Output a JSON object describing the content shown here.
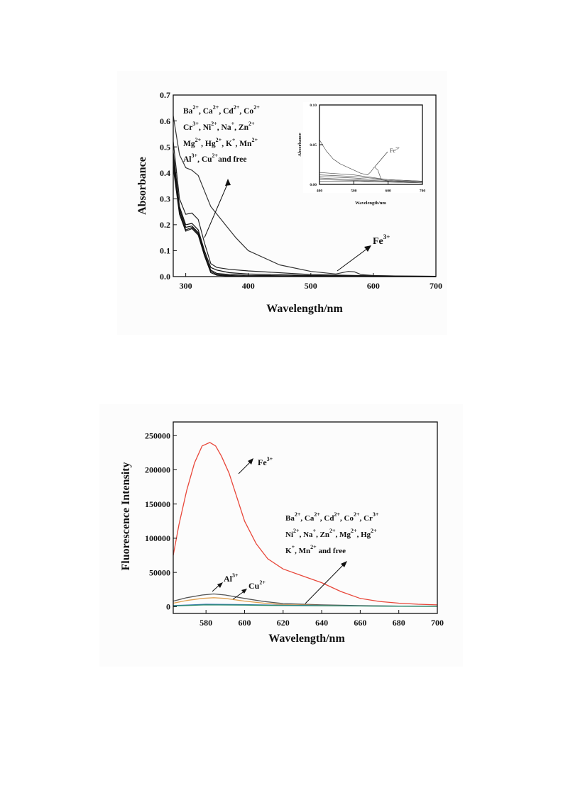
{
  "chart_data": [
    {
      "type": "line",
      "title": "",
      "xlabel": "Wavelength/nm",
      "ylabel": "Absorbance",
      "xlim": [
        280,
        700
      ],
      "ylim": [
        0,
        0.7
      ],
      "xticks": [
        "300",
        "400",
        "500",
        "600",
        "700"
      ],
      "yticks": [
        "0.0",
        "0.1",
        "0.2",
        "0.3",
        "0.4",
        "0.5",
        "0.6",
        "0.7"
      ],
      "series": [
        {
          "name": "Fe3+",
          "color": "#333333",
          "x": [
            280,
            290,
            300,
            310,
            320,
            330,
            340,
            360,
            380,
            400,
            450,
            500,
            540,
            560,
            570,
            580,
            600,
            650,
            700
          ],
          "y": [
            0.62,
            0.47,
            0.42,
            0.41,
            0.39,
            0.33,
            0.27,
            0.21,
            0.15,
            0.1,
            0.045,
            0.02,
            0.01,
            0.02,
            0.018,
            0.008,
            0.004,
            0.002,
            0.001
          ]
        },
        {
          "name": "",
          "color": "#222222",
          "x": [
            280,
            290,
            300,
            310,
            320,
            330,
            340,
            350,
            370,
            400,
            500,
            600,
            700
          ],
          "y": [
            0.52,
            0.3,
            0.24,
            0.245,
            0.22,
            0.13,
            0.05,
            0.035,
            0.028,
            0.022,
            0.008,
            0.003,
            0.001
          ]
        },
        {
          "name": "",
          "color": "#111111",
          "x": [
            280,
            290,
            300,
            310,
            320,
            330,
            340,
            350,
            370,
            400,
            500,
            600,
            700
          ],
          "y": [
            0.48,
            0.27,
            0.2,
            0.205,
            0.18,
            0.1,
            0.035,
            0.025,
            0.015,
            0.01,
            0.004,
            0.002,
            0.0
          ]
        },
        {
          "name": "",
          "color": "#111111",
          "x": [
            280,
            290,
            300,
            310,
            320,
            330,
            340,
            350,
            370,
            400,
            500,
            600,
            700
          ],
          "y": [
            0.46,
            0.26,
            0.19,
            0.195,
            0.17,
            0.09,
            0.025,
            0.012,
            0.008,
            0.005,
            0.002,
            0.001,
            0.0
          ]
        },
        {
          "name": "",
          "color": "#111111",
          "x": [
            280,
            290,
            300,
            310,
            320,
            330,
            340,
            350,
            370,
            400,
            500,
            600,
            700
          ],
          "y": [
            0.44,
            0.25,
            0.18,
            0.19,
            0.165,
            0.085,
            0.02,
            0.008,
            0.004,
            0.002,
            0.001,
            0.0,
            0.0
          ]
        },
        {
          "name": "",
          "color": "#111111",
          "x": [
            280,
            290,
            300,
            310,
            320,
            330,
            340,
            350,
            370,
            400,
            500,
            600,
            700
          ],
          "y": [
            0.42,
            0.24,
            0.175,
            0.185,
            0.16,
            0.08,
            0.015,
            0.005,
            0.002,
            0.001,
            0.0,
            0.0,
            0.0
          ]
        }
      ],
      "annotations": [
        {
          "text": "Ba2+, Ca2+, Cd2+, Co2+, Cr3+, Ni2+, Na+, Zn2+, Mg2+, Hg2+, K+, Mn2+, Al3+, Cu2+and free"
        },
        {
          "text": "Fe3+"
        }
      ],
      "inset": {
        "xlabel": "Wavelength/nm",
        "ylabel": "Absorbance",
        "xlim": [
          400,
          700
        ],
        "ylim": [
          0,
          0.1
        ],
        "xticks": [
          "400",
          "500",
          "600",
          "700"
        ],
        "yticks": [
          "0.00",
          "0.05",
          "0.10"
        ],
        "label": "Fe3+",
        "series": [
          {
            "name": "Fe3+",
            "x": [
              400,
              420,
              440,
              460,
              480,
              500,
              520,
              540,
              550,
              560,
              570,
              580,
              600,
              650,
              700
            ],
            "y": [
              0.056,
              0.042,
              0.032,
              0.026,
              0.022,
              0.018,
              0.014,
              0.012,
              0.016,
              0.022,
              0.018,
              0.006,
              0.004,
              0.003,
              0.003
            ]
          },
          {
            "name": "",
            "x": [
              400,
              500,
              600,
              700
            ],
            "y": [
              0.015,
              0.012,
              0.006,
              0.004
            ]
          },
          {
            "name": "",
            "x": [
              400,
              500,
              600,
              700
            ],
            "y": [
              0.012,
              0.01,
              0.006,
              0.004
            ]
          },
          {
            "name": "",
            "x": [
              400,
              500,
              600,
              700
            ],
            "y": [
              0.01,
              0.008,
              0.005,
              0.003
            ]
          },
          {
            "name": "",
            "x": [
              400,
              500,
              600,
              700
            ],
            "y": [
              0.008,
              0.006,
              0.004,
              0.003
            ]
          },
          {
            "name": "",
            "x": [
              400,
              500,
              600,
              700
            ],
            "y": [
              0.006,
              0.005,
              0.003,
              0.002
            ]
          },
          {
            "name": "",
            "x": [
              400,
              500,
              600,
              700
            ],
            "y": [
              0.004,
              0.004,
              0.003,
              0.002
            ]
          }
        ]
      }
    },
    {
      "type": "line",
      "title": "",
      "xlabel": "Wavelength/nm",
      "ylabel": "Fluorescence Intensity",
      "xlim": [
        563,
        700
      ],
      "ylim": [
        -10000,
        270000
      ],
      "xticks": [
        "580",
        "600",
        "620",
        "640",
        "660",
        "680",
        "700"
      ],
      "yticks": [
        "0",
        "50000",
        "100000",
        "150000",
        "200000",
        "250000"
      ],
      "series": [
        {
          "name": "Fe3+",
          "color": "#e8473a",
          "x": [
            563,
            566,
            570,
            574,
            578,
            582,
            585,
            588,
            592,
            596,
            600,
            606,
            612,
            620,
            630,
            640,
            650,
            660,
            670,
            680,
            690,
            700
          ],
          "y": [
            75000,
            120000,
            170000,
            210000,
            235000,
            240000,
            235000,
            220000,
            195000,
            160000,
            125000,
            92000,
            70000,
            55000,
            45000,
            35000,
            22000,
            12000,
            7500,
            5000,
            3500,
            2500
          ]
        },
        {
          "name": "Al3+",
          "color": "#555555",
          "x": [
            563,
            570,
            578,
            584,
            590,
            600,
            610,
            620,
            640,
            660,
            680,
            700
          ],
          "y": [
            8000,
            13000,
            17000,
            18500,
            17000,
            12000,
            7500,
            4500,
            2500,
            1500,
            800,
            500
          ]
        },
        {
          "name": "Cu2+",
          "color": "#e0a050",
          "x": [
            563,
            570,
            578,
            584,
            590,
            600,
            610,
            620,
            640,
            660,
            680,
            700
          ],
          "y": [
            5000,
            9000,
            12000,
            13000,
            12000,
            8000,
            5000,
            3000,
            1800,
            1000,
            600,
            400
          ]
        },
        {
          "name": "",
          "color": "#3e7bbf",
          "x": [
            563,
            580,
            600,
            620,
            640,
            660,
            680,
            700
          ],
          "y": [
            1500,
            3500,
            3000,
            2000,
            1500,
            1000,
            700,
            500
          ]
        },
        {
          "name": "",
          "color": "#2a8a6a",
          "x": [
            563,
            580,
            600,
            620,
            640,
            660,
            680,
            700
          ],
          "y": [
            1000,
            2500,
            2200,
            1500,
            1200,
            900,
            600,
            400
          ]
        }
      ],
      "annotations": [
        {
          "text": "Fe3+"
        },
        {
          "text": "Al3+"
        },
        {
          "text": "Cu2+"
        },
        {
          "text": "Ba2+, Ca2+, Cd2+, Co2+, Cr3+ Ni2+, Na+, Zn2+, Mg2+, Hg2+ K+, Mn2+ and free"
        }
      ]
    }
  ]
}
